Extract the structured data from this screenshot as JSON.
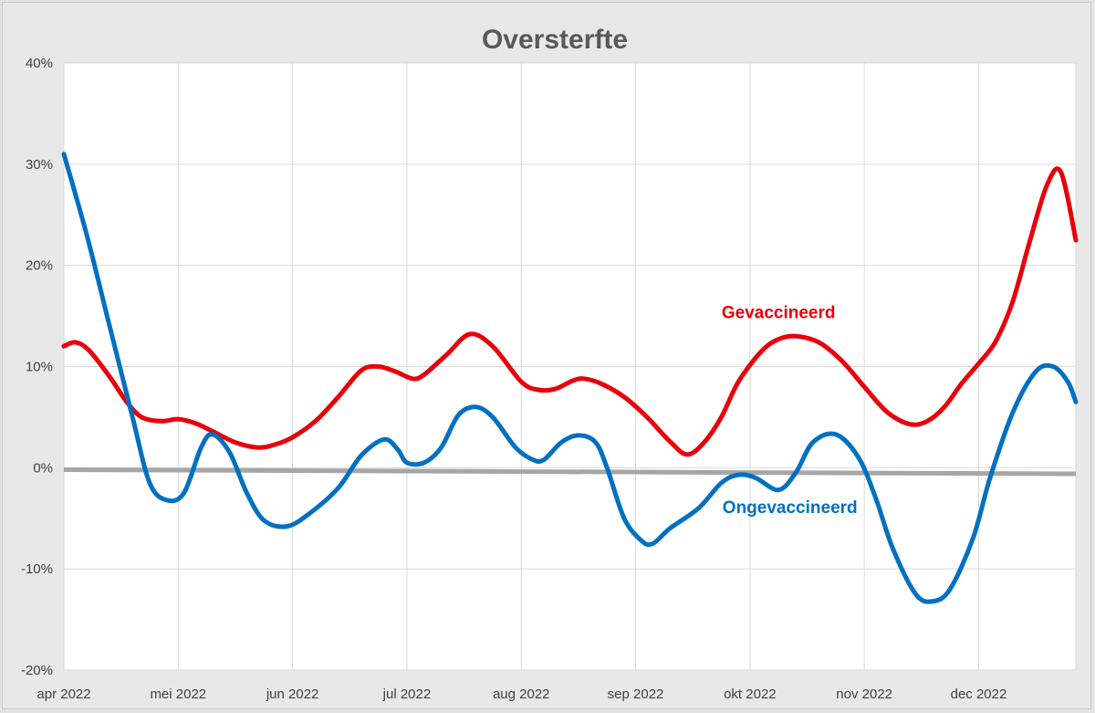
{
  "colors": {
    "background": "#e8e8e8",
    "plot_background": "#ffffff",
    "gridline": "#d9d9d9",
    "zero_line": "#a6a6a6",
    "gevaccineerd": "#e8000b",
    "ongevaccineerd": "#0070c0"
  },
  "chart_data": {
    "type": "line",
    "title": "Oversterfte",
    "xlabel": "",
    "ylabel": "",
    "grid": true,
    "legend": "none (series labelled directly on chart)",
    "x_range": [
      0,
      8.85
    ],
    "x_tick_labels": [
      "apr 2022",
      "mei 2022",
      "jun 2022",
      "jul 2022",
      "aug 2022",
      "sep 2022",
      "okt 2022",
      "nov 2022",
      "dec 2022"
    ],
    "y_range": [
      -20,
      40
    ],
    "y_ticks": [
      -20,
      -10,
      0,
      10,
      20,
      30,
      40
    ],
    "y_tick_labels": [
      "-20%",
      "-10%",
      "0%",
      "10%",
      "20%",
      "30%",
      "40%"
    ],
    "reference_line": [
      {
        "x": 0,
        "y": -0.2
      },
      {
        "x": 8.85,
        "y": -0.6
      }
    ],
    "series": [
      {
        "name": "Gevaccineerd",
        "color": "#e8000b",
        "points": [
          {
            "x": 0.0,
            "y": 12
          },
          {
            "x": 0.1,
            "y": 12.4
          },
          {
            "x": 0.22,
            "y": 11.6
          },
          {
            "x": 0.4,
            "y": 9
          },
          {
            "x": 0.55,
            "y": 6.5
          },
          {
            "x": 0.68,
            "y": 5
          },
          {
            "x": 0.85,
            "y": 4.6
          },
          {
            "x": 1.0,
            "y": 4.8
          },
          {
            "x": 1.15,
            "y": 4.4
          },
          {
            "x": 1.3,
            "y": 3.6
          },
          {
            "x": 1.5,
            "y": 2.5
          },
          {
            "x": 1.7,
            "y": 2
          },
          {
            "x": 1.85,
            "y": 2.3
          },
          {
            "x": 2.0,
            "y": 3
          },
          {
            "x": 2.2,
            "y": 4.6
          },
          {
            "x": 2.4,
            "y": 7
          },
          {
            "x": 2.6,
            "y": 9.6
          },
          {
            "x": 2.75,
            "y": 10
          },
          {
            "x": 2.9,
            "y": 9.5
          },
          {
            "x": 3.05,
            "y": 8.8
          },
          {
            "x": 3.15,
            "y": 9.2
          },
          {
            "x": 3.35,
            "y": 11.2
          },
          {
            "x": 3.55,
            "y": 13.2
          },
          {
            "x": 3.75,
            "y": 12
          },
          {
            "x": 4.0,
            "y": 8.5
          },
          {
            "x": 4.15,
            "y": 7.7
          },
          {
            "x": 4.3,
            "y": 7.8
          },
          {
            "x": 4.45,
            "y": 8.6
          },
          {
            "x": 4.55,
            "y": 8.8
          },
          {
            "x": 4.7,
            "y": 8.3
          },
          {
            "x": 4.9,
            "y": 7
          },
          {
            "x": 5.1,
            "y": 5
          },
          {
            "x": 5.3,
            "y": 2.6
          },
          {
            "x": 5.45,
            "y": 1.3
          },
          {
            "x": 5.6,
            "y": 2.5
          },
          {
            "x": 5.75,
            "y": 5
          },
          {
            "x": 5.9,
            "y": 8.5
          },
          {
            "x": 6.1,
            "y": 11.5
          },
          {
            "x": 6.25,
            "y": 12.7
          },
          {
            "x": 6.4,
            "y": 13
          },
          {
            "x": 6.6,
            "y": 12.4
          },
          {
            "x": 6.8,
            "y": 10.6
          },
          {
            "x": 7.0,
            "y": 8
          },
          {
            "x": 7.2,
            "y": 5.5
          },
          {
            "x": 7.4,
            "y": 4.3
          },
          {
            "x": 7.55,
            "y": 4.6
          },
          {
            "x": 7.7,
            "y": 6
          },
          {
            "x": 7.85,
            "y": 8.3
          },
          {
            "x": 8.0,
            "y": 10.3
          },
          {
            "x": 8.15,
            "y": 12.5
          },
          {
            "x": 8.3,
            "y": 16.5
          },
          {
            "x": 8.45,
            "y": 22.5
          },
          {
            "x": 8.6,
            "y": 28
          },
          {
            "x": 8.72,
            "y": 29.2
          },
          {
            "x": 8.85,
            "y": 22.5
          }
        ]
      },
      {
        "name": "Ongevaccineerd",
        "color": "#0070c0",
        "points": [
          {
            "x": 0.0,
            "y": 31
          },
          {
            "x": 0.2,
            "y": 23
          },
          {
            "x": 0.4,
            "y": 14
          },
          {
            "x": 0.6,
            "y": 5
          },
          {
            "x": 0.75,
            "y": -1.5
          },
          {
            "x": 0.9,
            "y": -3.2
          },
          {
            "x": 1.05,
            "y": -2.5
          },
          {
            "x": 1.2,
            "y": 2
          },
          {
            "x": 1.3,
            "y": 3.3
          },
          {
            "x": 1.45,
            "y": 1.5
          },
          {
            "x": 1.6,
            "y": -2.5
          },
          {
            "x": 1.75,
            "y": -5.2
          },
          {
            "x": 1.95,
            "y": -5.8
          },
          {
            "x": 2.15,
            "y": -4.5
          },
          {
            "x": 2.4,
            "y": -2
          },
          {
            "x": 2.6,
            "y": 1.2
          },
          {
            "x": 2.8,
            "y": 2.8
          },
          {
            "x": 2.92,
            "y": 1.8
          },
          {
            "x": 3.0,
            "y": 0.5
          },
          {
            "x": 3.15,
            "y": 0.5
          },
          {
            "x": 3.3,
            "y": 2
          },
          {
            "x": 3.45,
            "y": 5.2
          },
          {
            "x": 3.6,
            "y": 6
          },
          {
            "x": 3.75,
            "y": 5
          },
          {
            "x": 3.95,
            "y": 2
          },
          {
            "x": 4.1,
            "y": 0.8
          },
          {
            "x": 4.2,
            "y": 0.8
          },
          {
            "x": 4.35,
            "y": 2.5
          },
          {
            "x": 4.5,
            "y": 3.2
          },
          {
            "x": 4.65,
            "y": 2.5
          },
          {
            "x": 4.75,
            "y": 0
          },
          {
            "x": 4.9,
            "y": -5
          },
          {
            "x": 5.05,
            "y": -7.2
          },
          {
            "x": 5.15,
            "y": -7.5
          },
          {
            "x": 5.3,
            "y": -6
          },
          {
            "x": 5.55,
            "y": -4
          },
          {
            "x": 5.75,
            "y": -1.5
          },
          {
            "x": 5.9,
            "y": -0.7
          },
          {
            "x": 6.05,
            "y": -1
          },
          {
            "x": 6.25,
            "y": -2.2
          },
          {
            "x": 6.4,
            "y": -0.5
          },
          {
            "x": 6.55,
            "y": 2.5
          },
          {
            "x": 6.75,
            "y": 3.3
          },
          {
            "x": 6.95,
            "y": 1
          },
          {
            "x": 7.1,
            "y": -3
          },
          {
            "x": 7.25,
            "y": -8
          },
          {
            "x": 7.45,
            "y": -12.5
          },
          {
            "x": 7.6,
            "y": -13.2
          },
          {
            "x": 7.75,
            "y": -12
          },
          {
            "x": 7.95,
            "y": -7
          },
          {
            "x": 8.1,
            "y": -1
          },
          {
            "x": 8.3,
            "y": 5.5
          },
          {
            "x": 8.5,
            "y": 9.5
          },
          {
            "x": 8.65,
            "y": 10
          },
          {
            "x": 8.78,
            "y": 8.5
          },
          {
            "x": 8.85,
            "y": 6.5
          }
        ]
      }
    ],
    "annotations": [
      {
        "text": "Gevaccineerd",
        "series": "Gevaccineerd",
        "x": 6.25,
        "y": 14.8
      },
      {
        "text": "Ongevaccineerd",
        "series": "Ongevaccineerd",
        "x": 6.35,
        "y": -4.5
      }
    ]
  }
}
